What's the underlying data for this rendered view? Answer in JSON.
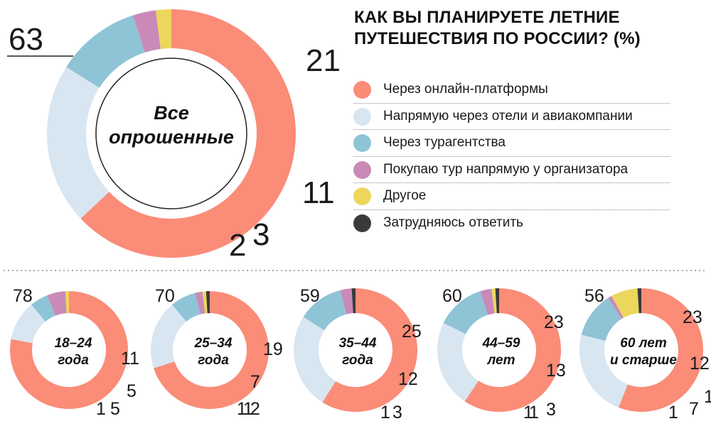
{
  "title_line1": "КАК ВЫ ПЛАНИРУЕТЕ ЛЕТНИЕ",
  "title_line2": "ПУТЕШЕСТВИЯ ПО РОССИИ? (%)",
  "legend": [
    {
      "label": "Через онлайн-платформы",
      "color": "#fa8c78"
    },
    {
      "label": "Напрямую через отели и авиакомпании",
      "color": "#d8e6f2"
    },
    {
      "label": "Через турагентства",
      "color": "#8fc3d6"
    },
    {
      "label": "Покупаю тур напрямую у организатора",
      "color": "#c98ab8"
    },
    {
      "label": "Другое",
      "color": "#ecd75c"
    },
    {
      "label": "Затрудняюсь ответить",
      "color": "#3a3a3a"
    }
  ],
  "main_center_label": [
    "Все",
    "опрошенные"
  ],
  "groups": [
    {
      "label": [
        "18–24",
        "года"
      ]
    },
    {
      "label": [
        "25–34",
        "года"
      ]
    },
    {
      "label": [
        "35–44",
        "года"
      ]
    },
    {
      "label": [
        "44–59",
        "лет"
      ]
    },
    {
      "label": [
        "60 лет",
        "и старше"
      ]
    }
  ],
  "chart_data": {
    "type": "pie",
    "title": "КАК ВЫ ПЛАНИРУЕТЕ ЛЕТНИЕ ПУТЕШЕСТВИЯ ПО РОССИИ? (%)",
    "categories": [
      "Через онлайн-платформы",
      "Напрямую через отели и авиакомпании",
      "Через турагентства",
      "Покупаю тур напрямую у организатора",
      "Другое",
      "Затрудняюсь ответить"
    ],
    "series": [
      {
        "name": "Все опрошенные",
        "values": [
          63,
          21,
          11,
          3,
          2,
          0
        ]
      },
      {
        "name": "18–24 года",
        "values": [
          78,
          11,
          5,
          5,
          1,
          0
        ]
      },
      {
        "name": "25–34 года",
        "values": [
          70,
          19,
          7,
          2,
          1,
          1
        ]
      },
      {
        "name": "35–44 года",
        "values": [
          59,
          25,
          12,
          3,
          0,
          1
        ]
      },
      {
        "name": "44–59 лет",
        "values": [
          60,
          23,
          13,
          3,
          1,
          1
        ]
      },
      {
        "name": "60 лет и старше",
        "values": [
          56,
          23,
          12,
          1,
          7,
          1
        ]
      }
    ]
  }
}
